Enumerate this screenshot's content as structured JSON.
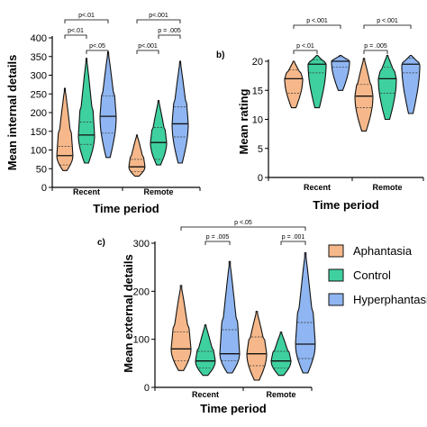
{
  "colors": {
    "Aphantasia": "#f6b88a",
    "Control": "#3fd0a0",
    "Hyperphantasia": "#8fb6f2"
  },
  "legend": {
    "items": [
      "Aphantasia",
      "Control",
      "Hyperphantasia"
    ]
  },
  "chart_data": [
    {
      "id": "a",
      "type": "violin",
      "panel_label": "",
      "ylabel": "Mean internal details",
      "xlabel": "Time period",
      "ylim": [
        0,
        400
      ],
      "yticks": [
        0,
        50,
        100,
        150,
        200,
        250,
        300,
        350,
        400
      ],
      "groups": [
        "Recent",
        "Remote"
      ],
      "series": [
        {
          "name": "Aphantasia",
          "group": "Recent",
          "min": 45,
          "q1": 60,
          "median": 85,
          "q3": 110,
          "max": 265
        },
        {
          "name": "Control",
          "group": "Recent",
          "min": 65,
          "q1": 115,
          "median": 140,
          "q3": 175,
          "max": 345
        },
        {
          "name": "Hyperphantasia",
          "group": "Recent",
          "min": 80,
          "q1": 145,
          "median": 190,
          "q3": 245,
          "max": 362
        },
        {
          "name": "Aphantasia",
          "group": "Remote",
          "min": 30,
          "q1": 42,
          "median": 55,
          "q3": 75,
          "max": 140
        },
        {
          "name": "Control",
          "group": "Remote",
          "min": 60,
          "q1": 75,
          "median": 120,
          "q3": 160,
          "max": 232
        },
        {
          "name": "Hyperphantasia",
          "group": "Remote",
          "min": 65,
          "q1": 135,
          "median": 170,
          "q3": 215,
          "max": 337
        }
      ],
      "annotations": [
        {
          "text": "p<.01",
          "group": "Recent",
          "from": 0,
          "to": 2,
          "level": 2
        },
        {
          "text": "p<.01",
          "group": "Recent",
          "from": 0,
          "to": 1,
          "level": 1
        },
        {
          "text": "p<.05",
          "group": "Recent",
          "from": 1,
          "to": 2,
          "level": 0
        },
        {
          "text": "p<.001",
          "group": "Remote",
          "from": 0,
          "to": 2,
          "level": 2
        },
        {
          "text": "p = .005",
          "group": "Remote",
          "from": 1,
          "to": 2,
          "level": 1
        },
        {
          "text": "p<.001",
          "group": "Remote",
          "from": 0,
          "to": 1,
          "level": 0
        }
      ]
    },
    {
      "id": "b",
      "type": "violin",
      "panel_label": "b)",
      "ylabel": "Mean rating",
      "xlabel": "Time period",
      "ylim": [
        0,
        20
      ],
      "yticks": [
        0,
        5,
        10,
        15,
        20
      ],
      "groups": [
        "Recent",
        "Remote"
      ],
      "series": [
        {
          "name": "Aphantasia",
          "group": "Recent",
          "min": 12,
          "q1": 14.5,
          "median": 17,
          "q3": 18.5,
          "max": 20
        },
        {
          "name": "Control",
          "group": "Recent",
          "min": 12,
          "q1": 18,
          "median": 19.5,
          "q3": 20.2,
          "max": 21
        },
        {
          "name": "Hyperphantasia",
          "group": "Recent",
          "min": 15,
          "q1": 19,
          "median": 20,
          "q3": 20.8,
          "max": 21
        },
        {
          "name": "Aphantasia",
          "group": "Remote",
          "min": 8,
          "q1": 12,
          "median": 14,
          "q3": 16,
          "max": 20.5
        },
        {
          "name": "Control",
          "group": "Remote",
          "min": 10,
          "q1": 14.5,
          "median": 17,
          "q3": 19,
          "max": 21
        },
        {
          "name": "Hyperphantasia",
          "group": "Remote",
          "min": 11,
          "q1": 18,
          "median": 19.5,
          "q3": 20.5,
          "max": 21
        }
      ],
      "annotations": [
        {
          "text": "p <.001",
          "group": "Recent",
          "from": 0,
          "to": 2,
          "level": 1
        },
        {
          "text": "p <.01",
          "group": "Recent",
          "from": 0,
          "to": 1,
          "level": 0
        },
        {
          "text": "p <.001",
          "group": "Remote",
          "from": 0,
          "to": 2,
          "level": 1
        },
        {
          "text": "p = .005",
          "group": "Remote",
          "from": 0,
          "to": 1,
          "level": 0
        }
      ]
    },
    {
      "id": "c",
      "type": "violin",
      "panel_label": "c)",
      "ylabel": "Mean external details",
      "xlabel": "Time period",
      "ylim": [
        0,
        300
      ],
      "yticks": [
        0,
        100,
        200,
        300
      ],
      "groups": [
        "Recent",
        "Remote"
      ],
      "series": [
        {
          "name": "Aphantasia",
          "group": "Recent",
          "min": 35,
          "q1": 55,
          "median": 80,
          "q3": 115,
          "max": 212
        },
        {
          "name": "Control",
          "group": "Recent",
          "min": 25,
          "q1": 40,
          "median": 55,
          "q3": 75,
          "max": 130
        },
        {
          "name": "Hyperphantasia",
          "group": "Recent",
          "min": 30,
          "q1": 55,
          "median": 70,
          "q3": 120,
          "max": 262
        },
        {
          "name": "Aphantasia",
          "group": "Remote",
          "min": 15,
          "q1": 45,
          "median": 70,
          "q3": 105,
          "max": 158
        },
        {
          "name": "Control",
          "group": "Remote",
          "min": 25,
          "q1": 40,
          "median": 55,
          "q3": 75,
          "max": 115
        },
        {
          "name": "Hyperphantasia",
          "group": "Remote",
          "min": 30,
          "q1": 60,
          "median": 90,
          "q3": 135,
          "max": 280
        }
      ],
      "annotations": [
        {
          "text": "p = .005",
          "group": "Recent",
          "from": 1,
          "to": 2,
          "level": 0
        },
        {
          "text": "p <.05",
          "group": "Remote",
          "from": -3,
          "to": 2,
          "level": 1
        },
        {
          "text": "p = .001",
          "group": "Remote",
          "from": 1,
          "to": 2,
          "level": 0
        }
      ]
    }
  ]
}
